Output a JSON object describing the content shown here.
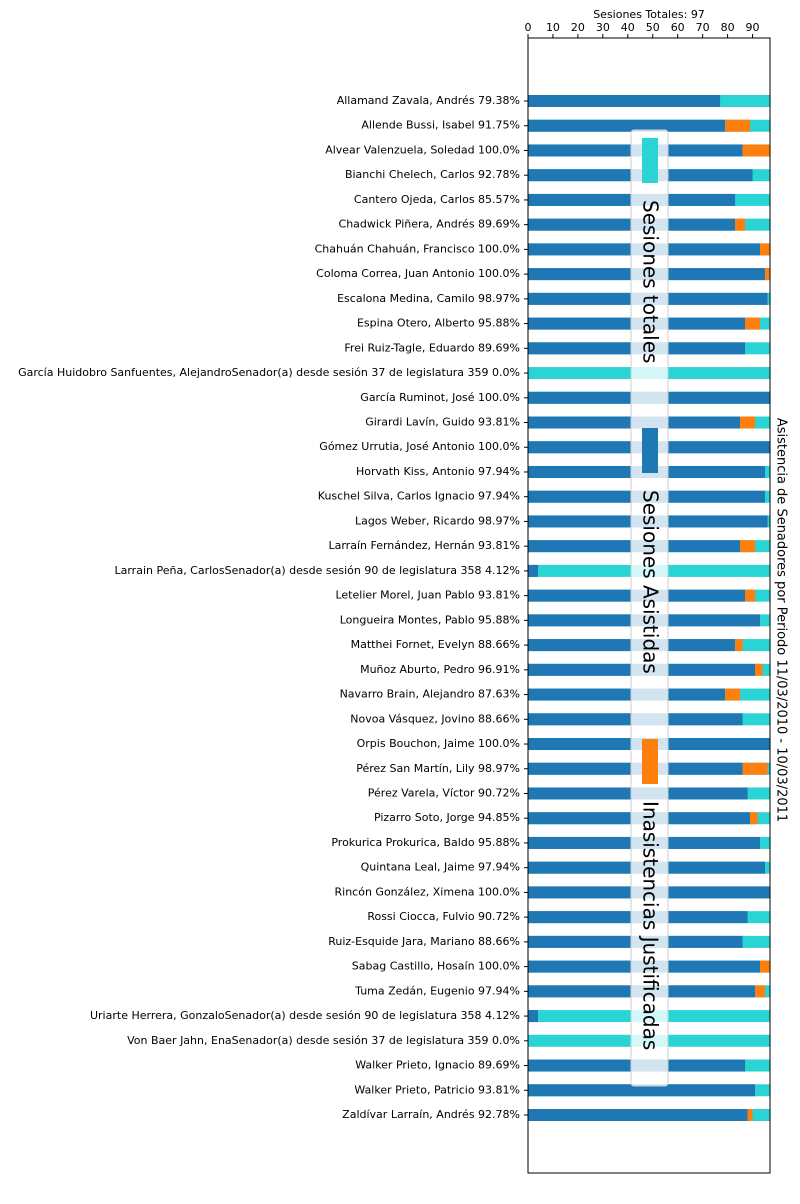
{
  "chart_data": {
    "type": "barh",
    "title": "Asistencia de Senadores por Periodo 11/03/2010 - 10/03/2011",
    "xlabel": "Sesiones Totales: 97",
    "xlim": [
      0,
      97
    ],
    "xticks": [
      0,
      10,
      20,
      30,
      40,
      50,
      60,
      70,
      80,
      90
    ],
    "legend": "center",
    "categories": [
      "Allamand Zavala, Andrés 79.38%",
      "Allende Bussi, Isabel 91.75%",
      "Alvear Valenzuela, Soledad 100.0%",
      "Bianchi Chelech, Carlos 92.78%",
      "Cantero Ojeda, Carlos 85.57%",
      "Chadwick Piñera, Andrés 89.69%",
      "Chahuán Chahuán, Francisco 100.0%",
      "Coloma Correa, Juan Antonio 100.0%",
      "Escalona Medina, Camilo 98.97%",
      "Espina Otero, Alberto 95.88%",
      "Frei Ruiz-Tagle, Eduardo 89.69%",
      "García Huidobro Sanfuentes, AlejandroSenador(a) desde sesión 37 de legislatura 359 0.0%",
      "García Ruminot, José 100.0%",
      "Girardi Lavín, Guido 93.81%",
      "Gómez Urrutia, José Antonio 100.0%",
      "Horvath Kiss, Antonio 97.94%",
      "Kuschel Silva, Carlos Ignacio 97.94%",
      "Lagos Weber, Ricardo 98.97%",
      "Larraín Fernández, Hernán 93.81%",
      "Larrain Peña, CarlosSenador(a) desde sesión 90 de legislatura 358 4.12%",
      "Letelier Morel, Juan Pablo 93.81%",
      "Longueira Montes, Pablo 95.88%",
      "Matthei Fornet, Evelyn 88.66%",
      "Muñoz Aburto, Pedro 96.91%",
      "Navarro Brain, Alejandro 87.63%",
      "Novoa Vásquez, Jovino 88.66%",
      "Orpis Bouchon, Jaime 100.0%",
      "Pérez San Martín, Lily 98.97%",
      "Pérez Varela, Víctor 90.72%",
      "Pizarro Soto, Jorge 94.85%",
      "Prokurica Prokurica, Baldo 95.88%",
      "Quintana Leal, Jaime 97.94%",
      "Rincón González, Ximena 100.0%",
      "Rossi Ciocca, Fulvio 90.72%",
      "Ruiz-Esquide Jara, Mariano 88.66%",
      "Sabag Castillo, Hosaín 100.0%",
      "Tuma Zedán, Eugenio 97.94%",
      "Uriarte Herrera, GonzaloSenador(a) desde sesión 90 de legislatura 358 4.12%",
      "Von Baer Jahn, EnaSenador(a) desde sesión 37 de legislatura 359 0.0%",
      "Walker Prieto, Ignacio 89.69%",
      "Walker Prieto, Patricio 93.81%",
      "Zaldívar Larraín, Andrés 92.78%"
    ],
    "series": [
      {
        "name": "Sesiones totales",
        "color": "#2bd4d4",
        "values": [
          97,
          97,
          97,
          97,
          97,
          97,
          97,
          97,
          97,
          97,
          97,
          97,
          97,
          97,
          97,
          97,
          97,
          97,
          97,
          97,
          97,
          97,
          97,
          97,
          97,
          97,
          97,
          97,
          97,
          97,
          97,
          97,
          97,
          97,
          97,
          97,
          97,
          97,
          97,
          97,
          97,
          97
        ]
      },
      {
        "name": "Sesiones Asistidas",
        "color": "#1f77b4",
        "values": [
          77,
          79,
          86,
          90,
          83,
          83,
          93,
          95,
          96,
          87,
          87,
          0,
          97,
          85,
          97,
          95,
          95,
          96,
          85,
          4,
          87,
          93,
          83,
          91,
          79,
          86,
          97,
          86,
          88,
          89,
          93,
          95,
          97,
          88,
          86,
          93,
          91,
          4,
          0,
          87,
          91,
          88
        ]
      },
      {
        "name": "Inasistencias Justificadas",
        "color": "#ff7f0e",
        "values": [
          0,
          10,
          11,
          0,
          0,
          4,
          4,
          2,
          0,
          6,
          0,
          0,
          0,
          6,
          0,
          0,
          0,
          0,
          6,
          0,
          4,
          0,
          3,
          3,
          6,
          0,
          0,
          10,
          0,
          3,
          0,
          0,
          0,
          0,
          0,
          4,
          4,
          0,
          0,
          0,
          0,
          2
        ]
      }
    ]
  }
}
